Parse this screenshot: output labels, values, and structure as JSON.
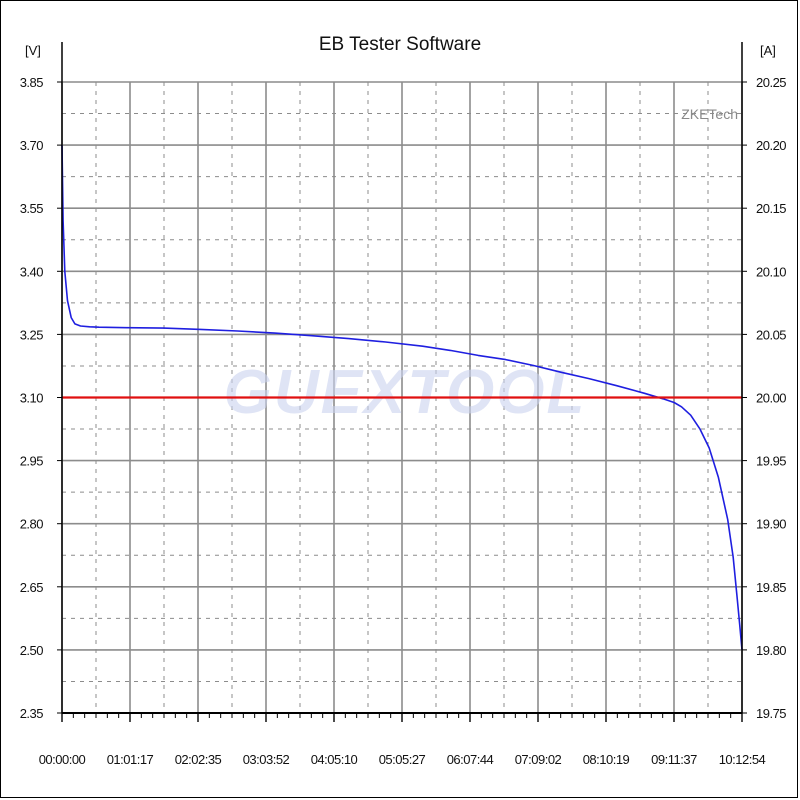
{
  "chart_data": {
    "type": "line",
    "title": "EB Tester Software",
    "ylabel": "[V]",
    "y2label": "[A]",
    "brand": "ZKETech",
    "watermark": "GUEXTOOL",
    "x_ticks": [
      "00:00:00",
      "01:01:17",
      "02:02:35",
      "03:03:52",
      "04:05:10",
      "05:05:27",
      "06:07:44",
      "07:09:02",
      "08:10:19",
      "09:11:37",
      "10:12:54"
    ],
    "xlim": [
      0,
      36774
    ],
    "y_ticks": [
      "3.85",
      "3.70",
      "3.55",
      "3.40",
      "3.25",
      "3.10",
      "2.95",
      "2.80",
      "2.65",
      "2.50",
      "2.35"
    ],
    "ylim": [
      2.35,
      3.85
    ],
    "y2_ticks": [
      "20.25",
      "20.20",
      "20.15",
      "20.10",
      "20.05",
      "20.00",
      "19.95",
      "19.90",
      "19.85",
      "19.80",
      "19.75"
    ],
    "y2lim": [
      19.75,
      20.25
    ],
    "grid": true,
    "series": [
      {
        "color": "#1f1fe0",
        "axis": "left",
        "x": [
          0,
          60,
          150,
          300,
          500,
          700,
          1000,
          1500,
          2000,
          3500,
          5500,
          7500,
          9500,
          11500,
          13500,
          15500,
          17500,
          19500,
          21000,
          22500,
          24000,
          25500,
          27000,
          28500,
          30000,
          31500,
          32500,
          33100,
          33500,
          34000,
          34500,
          35000,
          35500,
          36000,
          36300,
          36500,
          36650,
          36774
        ],
        "values": [
          3.7,
          3.52,
          3.4,
          3.33,
          3.29,
          3.275,
          3.27,
          3.268,
          3.267,
          3.266,
          3.265,
          3.262,
          3.258,
          3.253,
          3.247,
          3.24,
          3.232,
          3.222,
          3.212,
          3.2,
          3.19,
          3.176,
          3.16,
          3.145,
          3.128,
          3.11,
          3.097,
          3.088,
          3.078,
          3.058,
          3.025,
          2.98,
          2.91,
          2.81,
          2.72,
          2.63,
          2.56,
          2.5
        ]
      },
      {
        "name": "",
        "color": "#e01010",
        "axis": "right",
        "type": "hline",
        "value": 20.0
      }
    ]
  }
}
